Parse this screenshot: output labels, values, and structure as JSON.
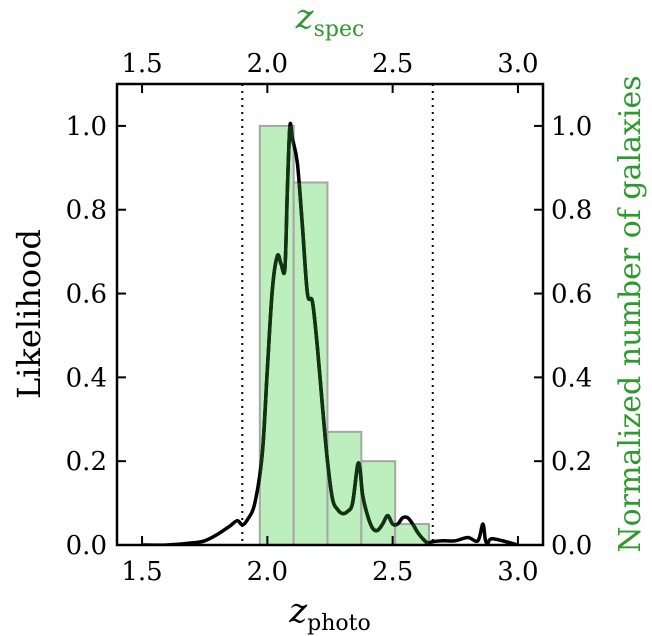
{
  "chart_data": {
    "type": "bar+line",
    "xlabel_bottom": {
      "symbol": "z",
      "subscript": "photo"
    },
    "xlabel_top": {
      "symbol": "z",
      "subscript": "spec"
    },
    "ylabel_left": "Likelihood",
    "ylabel_right": "Normalized number of galaxies",
    "xlim": [
      1.4,
      3.1
    ],
    "ylim": [
      0,
      1.1
    ],
    "x_ticks": [
      "1.5",
      "2.0",
      "2.5",
      "3.0"
    ],
    "y_ticks": [
      "0.0",
      "0.2",
      "0.4",
      "0.6",
      "0.8",
      "1.0"
    ],
    "vlines": [
      1.9,
      2.66
    ],
    "histogram": {
      "name": "Normalized number of galaxies",
      "edges": [
        1.97,
        2.105,
        2.24,
        2.375,
        2.51,
        2.645
      ],
      "values": [
        1.0,
        0.865,
        0.27,
        0.2,
        0.05
      ]
    },
    "likelihood": {
      "name": "Likelihood",
      "x": [
        1.5,
        1.6,
        1.7,
        1.75,
        1.8,
        1.85,
        1.88,
        1.9,
        1.92,
        1.95,
        1.98,
        2.0,
        2.02,
        2.04,
        2.055,
        2.07,
        2.08,
        2.09,
        2.1,
        2.12,
        2.14,
        2.16,
        2.18,
        2.2,
        2.22,
        2.24,
        2.26,
        2.28,
        2.3,
        2.32,
        2.34,
        2.36,
        2.37,
        2.38,
        2.4,
        2.42,
        2.44,
        2.46,
        2.48,
        2.5,
        2.52,
        2.54,
        2.56,
        2.58,
        2.6,
        2.62,
        2.64,
        2.66,
        2.7,
        2.75,
        2.8,
        2.84,
        2.86,
        2.87,
        2.88,
        2.9,
        3.0
      ],
      "y": [
        0.0,
        0.0,
        0.005,
        0.01,
        0.025,
        0.045,
        0.058,
        0.048,
        0.06,
        0.1,
        0.22,
        0.42,
        0.61,
        0.69,
        0.67,
        0.66,
        0.85,
        1.0,
        0.97,
        0.91,
        0.76,
        0.6,
        0.58,
        0.47,
        0.33,
        0.2,
        0.11,
        0.085,
        0.075,
        0.08,
        0.1,
        0.19,
        0.18,
        0.12,
        0.07,
        0.04,
        0.035,
        0.05,
        0.07,
        0.05,
        0.05,
        0.065,
        0.065,
        0.05,
        0.03,
        0.015,
        0.005,
        0.008,
        0.01,
        0.01,
        0.018,
        0.01,
        0.05,
        0.012,
        0.005,
        0.015,
        0.0
      ]
    },
    "colors": {
      "bar_fill": "#bdeebd",
      "bar_edge": "#a6a6a6",
      "line": "#000000",
      "line_inside_bars": "#113311",
      "right_axis_label": "#2e9a2e"
    },
    "grid": false
  }
}
